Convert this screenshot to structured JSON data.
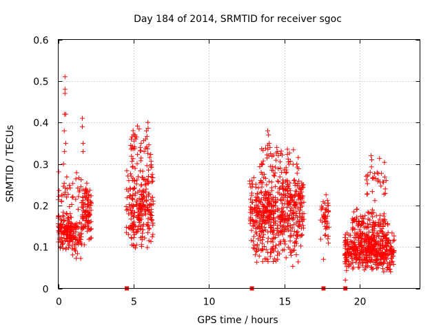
{
  "chart_data": {
    "type": "scatter",
    "title": "Day 184 of 2014, SRMTID for receiver sgoc",
    "xlabel": "GPS time / hours",
    "ylabel": "SRMTID / TECUs",
    "xlim": [
      0,
      24
    ],
    "ylim": [
      0,
      0.6
    ],
    "x_ticks": [
      0,
      5,
      10,
      15,
      20
    ],
    "x_tick_labels": [
      "0",
      "5",
      "10",
      "15",
      "20"
    ],
    "y_ticks": [
      0,
      0.1,
      0.2,
      0.3,
      0.4,
      0.5,
      0.6
    ],
    "y_tick_labels": [
      "0",
      "0.1",
      "0.2",
      "0.3",
      "0.4",
      "0.5",
      "0.6"
    ],
    "grid": true,
    "marker": "+",
    "color": "#ff0000",
    "zero_markers": [
      4.55,
      12.85,
      17.6,
      19.05
    ],
    "clusters": [
      {
        "x_range": [
          0.0,
          0.9
        ],
        "y_range": [
          0.09,
          0.19
        ],
        "count": 130,
        "seed": 11
      },
      {
        "x_range": [
          0.9,
          1.6
        ],
        "y_range": [
          0.07,
          0.17
        ],
        "count": 60,
        "seed": 12
      },
      {
        "x_range": [
          1.6,
          2.2
        ],
        "y_range": [
          0.1,
          0.26
        ],
        "count": 80,
        "seed": 13
      },
      {
        "x_range": [
          0.0,
          2.2
        ],
        "y_range": [
          0.17,
          0.3
        ],
        "count": 50,
        "seed": 14
      },
      {
        "x_range": [
          4.5,
          6.3
        ],
        "y_range": [
          0.08,
          0.32
        ],
        "count": 240,
        "seed": 21
      },
      {
        "x_range": [
          4.8,
          6.2
        ],
        "y_range": [
          0.28,
          0.4
        ],
        "count": 35,
        "seed": 22
      },
      {
        "x_range": [
          12.7,
          16.3
        ],
        "y_range": [
          0.1,
          0.28
        ],
        "count": 480,
        "seed": 31
      },
      {
        "x_range": [
          12.9,
          16.0
        ],
        "y_range": [
          0.05,
          0.14
        ],
        "count": 70,
        "seed": 32
      },
      {
        "x_range": [
          13.3,
          16.0
        ],
        "y_range": [
          0.25,
          0.35
        ],
        "count": 60,
        "seed": 33
      },
      {
        "x_range": [
          17.4,
          18.0
        ],
        "y_range": [
          0.1,
          0.24
        ],
        "count": 45,
        "seed": 41
      },
      {
        "x_range": [
          19.0,
          22.3
        ],
        "y_range": [
          0.04,
          0.14
        ],
        "count": 420,
        "seed": 51
      },
      {
        "x_range": [
          19.5,
          21.9
        ],
        "y_range": [
          0.1,
          0.2
        ],
        "count": 120,
        "seed": 52
      },
      {
        "x_range": [
          20.4,
          21.8
        ],
        "y_range": [
          0.2,
          0.32
        ],
        "count": 30,
        "seed": 53
      }
    ],
    "extra_points": [
      [
        0.45,
        0.51
      ],
      [
        0.45,
        0.48
      ],
      [
        0.45,
        0.47
      ],
      [
        0.42,
        0.42
      ],
      [
        0.5,
        0.42
      ],
      [
        0.4,
        0.38
      ],
      [
        0.5,
        0.35
      ],
      [
        0.42,
        0.33
      ],
      [
        0.35,
        0.3
      ],
      [
        1.6,
        0.41
      ],
      [
        1.6,
        0.39
      ],
      [
        1.65,
        0.35
      ],
      [
        1.65,
        0.33
      ],
      [
        0.55,
        0.22
      ],
      [
        0.6,
        0.24
      ],
      [
        5.95,
        0.4
      ],
      [
        5.85,
        0.38
      ],
      [
        5.8,
        0.36
      ],
      [
        5.1,
        0.37
      ],
      [
        5.15,
        0.36
      ],
      [
        5.5,
        0.35
      ],
      [
        5.45,
        0.34
      ],
      [
        5.7,
        0.33
      ],
      [
        13.9,
        0.38
      ],
      [
        13.95,
        0.37
      ],
      [
        14.0,
        0.35
      ],
      [
        14.05,
        0.34
      ],
      [
        14.5,
        0.34
      ],
      [
        14.55,
        0.33
      ],
      [
        14.6,
        0.32
      ],
      [
        14.55,
        0.07
      ],
      [
        15.45,
        0.08
      ],
      [
        15.5,
        0.09
      ],
      [
        17.6,
        0.07
      ],
      [
        19.05,
        0.02
      ],
      [
        20.75,
        0.32
      ],
      [
        20.8,
        0.31
      ],
      [
        20.7,
        0.28
      ],
      [
        21.75,
        0.26
      ],
      [
        21.7,
        0.24
      ],
      [
        21.2,
        0.05
      ],
      [
        21.6,
        0.04
      ],
      [
        22.05,
        0.04
      ]
    ]
  }
}
